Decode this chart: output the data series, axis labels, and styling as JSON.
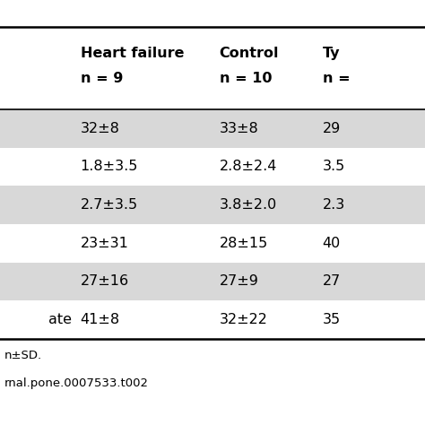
{
  "headers": [
    "",
    "Heart failure\nn = 9",
    "Control\nn = 10",
    "Ty\nn ="
  ],
  "rows": [
    [
      "",
      "32±8",
      "33±8",
      "29"
    ],
    [
      "",
      "1.8±3.5",
      "2.8±2.4",
      "3.5"
    ],
    [
      "",
      "2.7±3.5",
      "3.8±2.0",
      "2.3"
    ],
    [
      "",
      "23±31",
      "28±15",
      "40"
    ],
    [
      "",
      "27±16",
      "27±9",
      "27"
    ],
    [
      "ate",
      "41±8",
      "32±22",
      "35"
    ]
  ],
  "row_shading": [
    true,
    false,
    true,
    false,
    true,
    false
  ],
  "footer_lines": [
    "n±SD.",
    "rnal.pone.0007533.t002"
  ],
  "shading_color": "#d8d8d8",
  "bg_color": "#ffffff",
  "header_fontsize": 11.5,
  "cell_fontsize": 11.5,
  "footer_fontsize": 9.5
}
